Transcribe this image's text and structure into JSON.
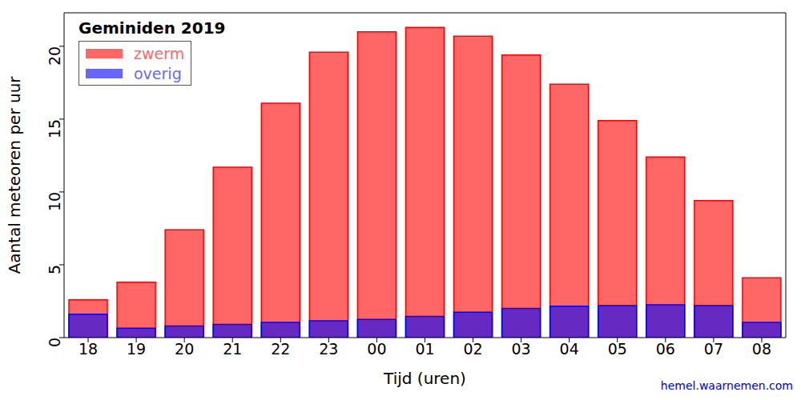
{
  "chart_data": {
    "type": "bar",
    "title": "Geminiden 2019",
    "x_label": "Tijd (uren)",
    "y_label": "Aantal meteoren per uur",
    "annotations": [
      "hemel.waarnemen.com"
    ],
    "categories": [
      "18",
      "19",
      "20",
      "21",
      "22",
      "23",
      "00",
      "01",
      "02",
      "03",
      "04",
      "05",
      "06",
      "07",
      "08"
    ],
    "series": [
      {
        "name": "zwerm",
        "color": "#ff0000",
        "values": [
          2.6,
          3.8,
          7.4,
          11.7,
          16.1,
          19.6,
          21.0,
          21.3,
          20.7,
          19.4,
          17.4,
          14.9,
          12.4,
          9.4,
          4.1
        ]
      },
      {
        "name": "overig",
        "color": "#0000ff",
        "values": [
          1.6,
          0.65,
          0.8,
          0.9,
          1.05,
          1.15,
          1.25,
          1.45,
          1.75,
          2.0,
          2.15,
          2.2,
          2.25,
          2.2,
          1.05
        ]
      }
    ],
    "ylim": [
      0,
      22.3
    ],
    "yticks": [
      0,
      5,
      10,
      15,
      20
    ],
    "stacked": false,
    "grid": false,
    "legend": "top-left"
  }
}
